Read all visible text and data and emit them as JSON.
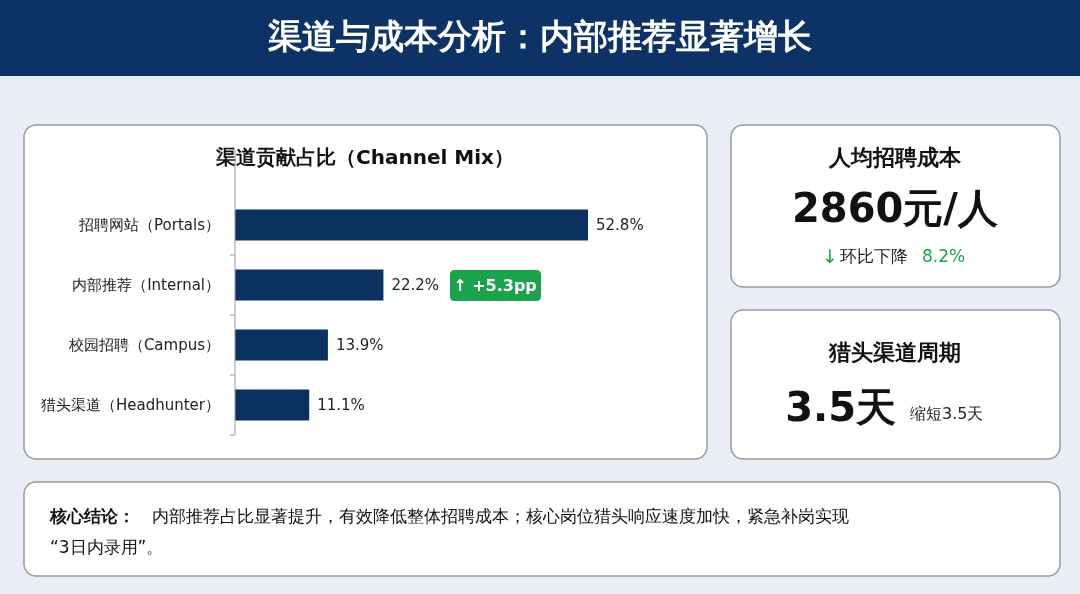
{
  "chart_data": [
    {
      "type": "other",
      "title": "渠道与成本分析：内部推荐显著增长"
    },
    {
      "type": "bar",
      "orientation": "horizontal",
      "title": "渠道贡献占比（Channel Mix）",
      "categories": [
        "招聘网站（Portals）",
        "内部推荐（Internal）",
        "校园招聘（Campus）",
        "猎头渠道（Headhunter）"
      ],
      "values": [
        52.8,
        22.2,
        13.9,
        11.1
      ],
      "value_labels": [
        "52.8%",
        "22.2%",
        "13.9%",
        "11.1%"
      ],
      "color": "#0b3161",
      "annotations": [
        "↑ +5.3pp"
      ]
    },
    {
      "type": "other",
      "title": "人均招聘成本",
      "annotations": [
        "2860元/人",
        "↓",
        "环比下降",
        "8.2%"
      ]
    },
    {
      "type": "other",
      "title": "猎头渠道周期",
      "annotations": [
        "3.5天",
        "缩短3.5天"
      ]
    },
    {
      "type": "other",
      "title": "核心结论：",
      "annotations": [
        "内部推荐占比显著提升，有效降低整体招聘成本；核心岗位猎头响应速度加快，紧急补岗实现",
        "“3日内录用”。"
      ]
    }
  ]
}
